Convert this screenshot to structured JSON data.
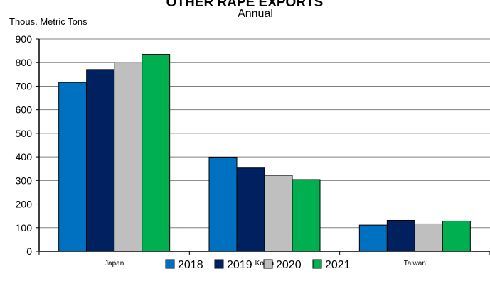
{
  "chart_data": {
    "type": "bar",
    "title": "OTHER RAPE EXPORTS",
    "subtitle": "Annual",
    "ylabel": "Thous. Metric Tons",
    "xlabel": "",
    "categories": [
      "Japan",
      "Korea",
      "Taiwan"
    ],
    "series": [
      {
        "name": "2018",
        "color": "#0070c0",
        "values": [
          716,
          399,
          111
        ]
      },
      {
        "name": "2019",
        "color": "#002060",
        "values": [
          771,
          353,
          131
        ]
      },
      {
        "name": "2020",
        "color": "#bfbfbf",
        "values": [
          802,
          322,
          116
        ]
      },
      {
        "name": "2021",
        "color": "#00b050",
        "values": [
          835,
          304,
          128
        ]
      }
    ],
    "ylim": [
      0,
      900
    ],
    "yticks": [
      "0",
      "100",
      "200",
      "300",
      "400",
      "500",
      "600",
      "700",
      "800",
      "900"
    ],
    "grid": true,
    "legend_position": "bottom"
  }
}
